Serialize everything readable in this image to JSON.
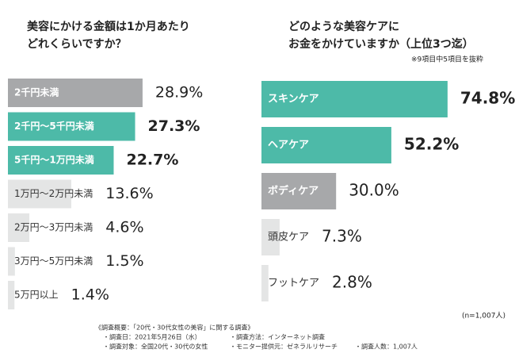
{
  "chart_data": [
    {
      "type": "bar",
      "orientation": "horizontal",
      "title": [
        "美容にかける金額は1か月あたり",
        "どれくらいですか？"
      ],
      "categories": [
        "2千円未満",
        "2千円～5千円未満",
        "5千円～1万円未満",
        "1万円～2万円未満",
        "2万円～3万円未満",
        "3万円～5万円未満",
        "5万円以上"
      ],
      "values": [
        28.9,
        27.3,
        22.7,
        13.6,
        4.6,
        1.5,
        1.4
      ],
      "value_labels": [
        "28.9%",
        "27.3%",
        "22.7%",
        "13.6%",
        "4.6%",
        "1.5%",
        "1.4%"
      ],
      "colors": [
        "#a7a8aa",
        "#4dbaa8",
        "#4dbaa8",
        "#e4e5e5",
        "#e4e5e5",
        "#e4e5e5",
        "#e4e5e5"
      ]
    },
    {
      "type": "bar",
      "orientation": "horizontal",
      "title": [
        "どのような美容ケアに",
        "お金をかけていますか（上位3つ迄）"
      ],
      "subtitle": "※9項目中5項目を抜粋",
      "categories": [
        "スキンケア",
        "ヘアケア",
        "ボディケア",
        "頭皮ケア",
        "フットケア"
      ],
      "values": [
        74.8,
        52.2,
        30.0,
        7.3,
        2.8
      ],
      "value_labels": [
        "74.8%",
        "52.2%",
        "30.0%",
        "7.3%",
        "2.8%"
      ],
      "colors": [
        "#4dbaa8",
        "#4dbaa8",
        "#a7a8aa",
        "#e4e5e5",
        "#e4e5e5"
      ],
      "note": "(n=1,007人)"
    }
  ],
  "footer": {
    "heading": "《調査概要：「20代・30代女性の美容」に関する調査》",
    "items": [
      "・調査日：2021年5月26日（水）",
      "・調査方法：インターネット調査",
      "・調査対象：全国20代・30代の女性",
      "・モニター提供元：ゼネラルリサーチ",
      "・調査人数：1,007人"
    ]
  }
}
